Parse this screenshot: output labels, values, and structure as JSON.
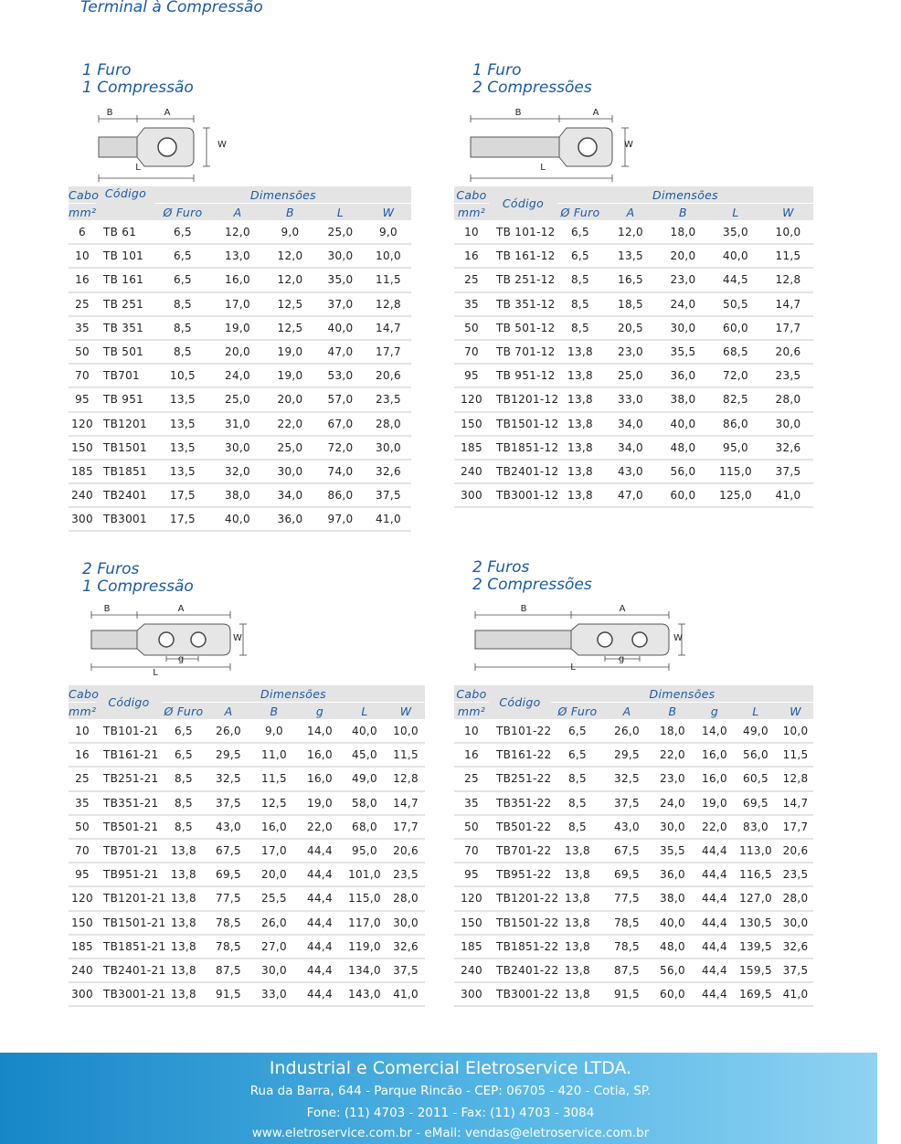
{
  "title": "Terminal à Compressão",
  "sections": [
    {
      "heading": [
        "1 Furo",
        "1 Compressão"
      ],
      "diagram_labels": [
        "B",
        "A",
        "W",
        "L"
      ],
      "header_top": [
        "Cabo",
        "Código",
        "Dimensões"
      ],
      "header_sub": [
        "mm²",
        "Ø Furo",
        "A",
        "B",
        "L",
        "W"
      ],
      "rows": [
        [
          "6",
          "TB 61",
          "6,5",
          "12,0",
          "9,0",
          "25,0",
          "9,0"
        ],
        [
          "10",
          "TB 101",
          "6,5",
          "13,0",
          "12,0",
          "30,0",
          "10,0"
        ],
        [
          "16",
          "TB 161",
          "6,5",
          "16,0",
          "12,0",
          "35,0",
          "11,5"
        ],
        [
          "25",
          "TB 251",
          "8,5",
          "17,0",
          "12,5",
          "37,0",
          "12,8"
        ],
        [
          "35",
          "TB 351",
          "8,5",
          "19,0",
          "12,5",
          "40,0",
          "14,7"
        ],
        [
          "50",
          "TB 501",
          "8,5",
          "20,0",
          "19,0",
          "47,0",
          "17,7"
        ],
        [
          "70",
          "TB701",
          "10,5",
          "24,0",
          "19,0",
          "53,0",
          "20,6"
        ],
        [
          "95",
          "TB 951",
          "13,5",
          "25,0",
          "20,0",
          "57,0",
          "23,5"
        ],
        [
          "120",
          "TB1201",
          "13,5",
          "31,0",
          "22,0",
          "67,0",
          "28,0"
        ],
        [
          "150",
          "TB1501",
          "13,5",
          "30,0",
          "25,0",
          "72,0",
          "30,0"
        ],
        [
          "185",
          "TB1851",
          "13,5",
          "32,0",
          "30,0",
          "74,0",
          "32,6"
        ],
        [
          "240",
          "TB2401",
          "17,5",
          "38,0",
          "34,0",
          "86,0",
          "37,5"
        ],
        [
          "300",
          "TB3001",
          "17,5",
          "40,0",
          "36,0",
          "97,0",
          "41,0"
        ]
      ]
    },
    {
      "heading": [
        "1 Furo",
        "2 Compressões"
      ],
      "diagram_labels": [
        "B",
        "A",
        "W",
        "L"
      ],
      "header_top": [
        "Cabo",
        "Código",
        "Dimensões"
      ],
      "header_sub": [
        "mm²",
        "Ø Furo",
        "A",
        "B",
        "L",
        "W"
      ],
      "rows": [
        [
          "10",
          "TB 101-12",
          "6,5",
          "12,0",
          "18,0",
          "35,0",
          "10,0"
        ],
        [
          "16",
          "TB 161-12",
          "6,5",
          "13,5",
          "20,0",
          "40,0",
          "11,5"
        ],
        [
          "25",
          "TB 251-12",
          "8,5",
          "16,5",
          "23,0",
          "44,5",
          "12,8"
        ],
        [
          "35",
          "TB 351-12",
          "8,5",
          "18,5",
          "24,0",
          "50,5",
          "14,7"
        ],
        [
          "50",
          "TB 501-12",
          "8,5",
          "20,5",
          "30,0",
          "60,0",
          "17,7"
        ],
        [
          "70",
          "TB 701-12",
          "13,8",
          "23,0",
          "35,5",
          "68,5",
          "20,6"
        ],
        [
          "95",
          "TB 951-12",
          "13,8",
          "25,0",
          "36,0",
          "72,0",
          "23,5"
        ],
        [
          "120",
          "TB1201-12",
          "13,8",
          "33,0",
          "38,0",
          "82,5",
          "28,0"
        ],
        [
          "150",
          "TB1501-12",
          "13,8",
          "34,0",
          "40,0",
          "86,0",
          "30,0"
        ],
        [
          "185",
          "TB1851-12",
          "13,8",
          "34,0",
          "48,0",
          "95,0",
          "32,6"
        ],
        [
          "240",
          "TB2401-12",
          "13,8",
          "43,0",
          "56,0",
          "115,0",
          "37,5"
        ],
        [
          "300",
          "TB3001-12",
          "13,8",
          "47,0",
          "60,0",
          "125,0",
          "41,0"
        ]
      ]
    },
    {
      "heading": [
        "2 Furos",
        "1 Compressão"
      ],
      "diagram_labels": [
        "B",
        "A",
        "W",
        "g",
        "L"
      ],
      "header_top": [
        "Cabo",
        "Código",
        "Dimensões"
      ],
      "header_sub": [
        "mm²",
        "Ø Furo",
        "A",
        "B",
        "g",
        "L",
        "W"
      ],
      "rows": [
        [
          "10",
          "TB101-21",
          "6,5",
          "26,0",
          "9,0",
          "14,0",
          "40,0",
          "10,0"
        ],
        [
          "16",
          "TB161-21",
          "6,5",
          "29,5",
          "11,0",
          "16,0",
          "45,0",
          "11,5"
        ],
        [
          "25",
          "TB251-21",
          "8,5",
          "32,5",
          "11,5",
          "16,0",
          "49,0",
          "12,8"
        ],
        [
          "35",
          "TB351-21",
          "8,5",
          "37,5",
          "12,5",
          "19,0",
          "58,0",
          "14,7"
        ],
        [
          "50",
          "TB501-21",
          "8,5",
          "43,0",
          "16,0",
          "22,0",
          "68,0",
          "17,7"
        ],
        [
          "70",
          "TB701-21",
          "13,8",
          "67,5",
          "17,0",
          "44,4",
          "95,0",
          "20,6"
        ],
        [
          "95",
          "TB951-21",
          "13,8",
          "69,5",
          "20,0",
          "44,4",
          "101,0",
          "23,5"
        ],
        [
          "120",
          "TB1201-21",
          "13,8",
          "77,5",
          "25,5",
          "44,4",
          "115,0",
          "28,0"
        ],
        [
          "150",
          "TB1501-21",
          "13,8",
          "78,5",
          "26,0",
          "44,4",
          "117,0",
          "30,0"
        ],
        [
          "185",
          "TB1851-21",
          "13,8",
          "78,5",
          "27,0",
          "44,4",
          "119,0",
          "32,6"
        ],
        [
          "240",
          "TB2401-21",
          "13,8",
          "87,5",
          "30,0",
          "44,4",
          "134,0",
          "37,5"
        ],
        [
          "300",
          "TB3001-21",
          "13,8",
          "91,5",
          "33,0",
          "44,4",
          "143,0",
          "41,0"
        ]
      ]
    },
    {
      "heading": [
        "2 Furos",
        "2 Compressões"
      ],
      "diagram_labels": [
        "B",
        "A",
        "W",
        "g",
        "L"
      ],
      "header_top": [
        "Cabo",
        "Código",
        "Dimensões"
      ],
      "header_sub": [
        "mm²",
        "Ø Furo",
        "A",
        "B",
        "g",
        "L",
        "W"
      ],
      "rows": [
        [
          "10",
          "TB101-22",
          "6,5",
          "26,0",
          "18,0",
          "14,0",
          "49,0",
          "10,0"
        ],
        [
          "16",
          "TB161-22",
          "6,5",
          "29,5",
          "22,0",
          "16,0",
          "56,0",
          "11,5"
        ],
        [
          "25",
          "TB251-22",
          "8,5",
          "32,5",
          "23,0",
          "16,0",
          "60,5",
          "12,8"
        ],
        [
          "35",
          "TB351-22",
          "8,5",
          "37,5",
          "24,0",
          "19,0",
          "69,5",
          "14,7"
        ],
        [
          "50",
          "TB501-22",
          "8,5",
          "43,0",
          "30,0",
          "22,0",
          "83,0",
          "17,7"
        ],
        [
          "70",
          "TB701-22",
          "13,8",
          "67,5",
          "35,5",
          "44,4",
          "113,0",
          "20,6"
        ],
        [
          "95",
          "TB951-22",
          "13,8",
          "69,5",
          "36,0",
          "44,4",
          "116,5",
          "23,5"
        ],
        [
          "120",
          "TB1201-22",
          "13,8",
          "77,5",
          "38,0",
          "44,4",
          "127,0",
          "28,0"
        ],
        [
          "150",
          "TB1501-22",
          "13,8",
          "78,5",
          "40,0",
          "44,4",
          "130,5",
          "30,0"
        ],
        [
          "185",
          "TB1851-22",
          "13,8",
          "78,5",
          "48,0",
          "44,4",
          "139,5",
          "32,6"
        ],
        [
          "240",
          "TB2401-22",
          "13,8",
          "87,5",
          "56,0",
          "44,4",
          "159,5",
          "37,5"
        ],
        [
          "300",
          "TB3001-22",
          "13,8",
          "91,5",
          "60,0",
          "44,4",
          "169,5",
          "41,0"
        ]
      ]
    }
  ],
  "footer": [
    "Industrial e Comercial Eletroservice LTDA.",
    "Rua da Barra, 644 - Parque Rincão - CEP: 06705 - 420 - Cotia, SP.",
    "Fone: (11) 4703 - 2011 - Fax: (11) 4703 - 3084",
    "www.eletroservice.com.br - eMail: vendas@eletroservice.com.br"
  ]
}
